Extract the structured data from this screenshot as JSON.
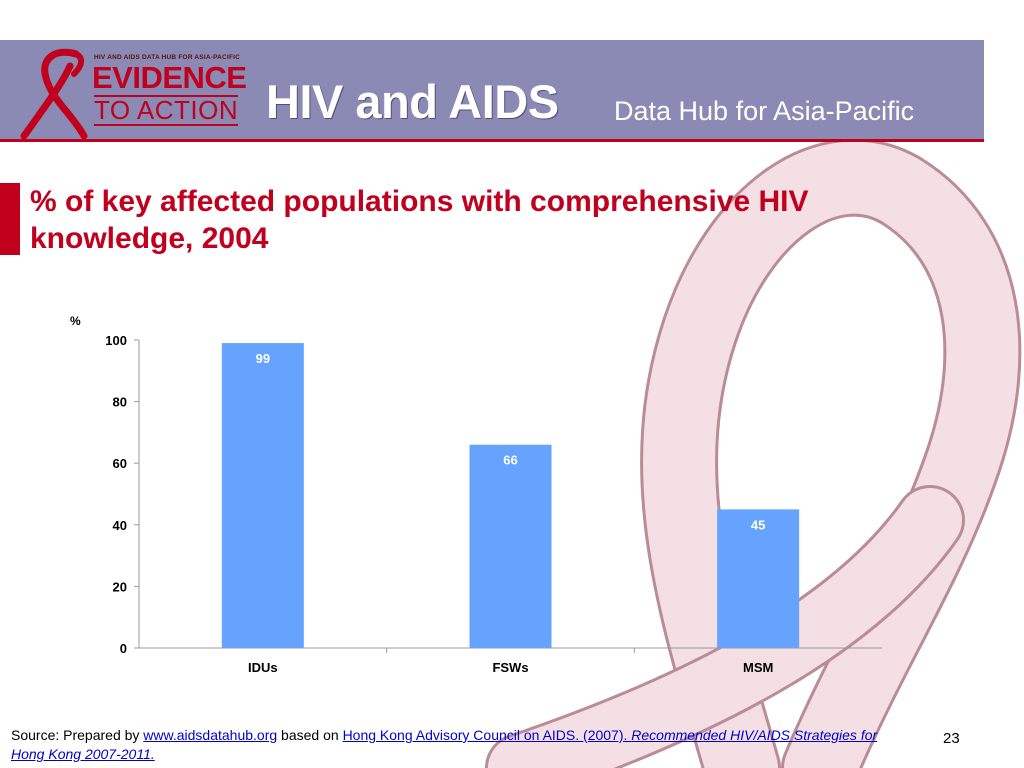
{
  "colors": {
    "header_band": "#8a8ab4",
    "accent_red": "#c0001d",
    "bar": "#66a3ff",
    "ribbon_background": "#f2d8df"
  },
  "logo": {
    "tagline": "HIV AND AIDS DATA HUB FOR ASIA-PACIFIC",
    "line1": "EVIDENCE",
    "line2": "TO ACTION",
    "icon": "red-ribbon-icon"
  },
  "header": {
    "title": "HIV and AIDS",
    "subtitle": "Data Hub for Asia-Pacific"
  },
  "slide": {
    "title": "% of key affected populations with comprehensive HIV knowledge, 2004"
  },
  "chart_data": {
    "type": "bar",
    "title": "",
    "ylabel": "%",
    "xlabel": "",
    "categories": [
      "IDUs",
      "FSWs",
      "MSM"
    ],
    "values": [
      99,
      66,
      45
    ],
    "data_labels": [
      "99",
      "66",
      "45"
    ],
    "ylim": [
      0,
      100
    ],
    "yticks": [
      0,
      20,
      40,
      60,
      80,
      100
    ],
    "grid": false,
    "legend": "none"
  },
  "footer": {
    "prefix": "Source: Prepared by ",
    "link1": "www.aidsdatahub.org",
    "middle": " based on ",
    "link2": "Hong Kong Advisory Council on AIDS. (2007). ",
    "link2_italic": "Recommended HIV/AIDS Strategies for Hong Kong 2007-2011."
  },
  "page_number": "23"
}
